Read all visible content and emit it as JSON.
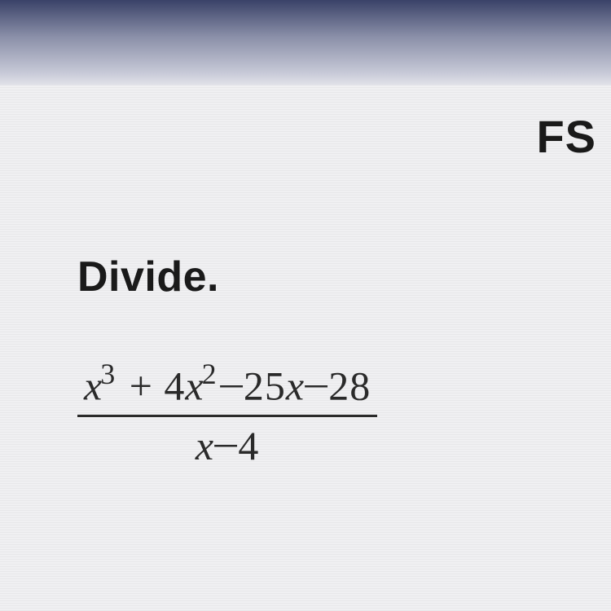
{
  "header": {
    "partial_text": "FS"
  },
  "problem": {
    "instruction": "Divide.",
    "expression": {
      "numerator": {
        "terms": [
          {
            "variable": "x",
            "exponent": 3,
            "coefficient": 1,
            "sign": ""
          },
          {
            "variable": "x",
            "exponent": 2,
            "coefficient": 4,
            "sign": "+"
          },
          {
            "variable": "x",
            "exponent": 1,
            "coefficient": 25,
            "sign": "−"
          },
          {
            "variable": null,
            "exponent": null,
            "coefficient": 28,
            "sign": "−"
          }
        ],
        "rendered": "x³ + 4x² − 25x − 28"
      },
      "denominator": {
        "terms": [
          {
            "variable": "x",
            "exponent": 1,
            "coefficient": 1,
            "sign": ""
          },
          {
            "variable": null,
            "exponent": null,
            "coefficient": 4,
            "sign": "−"
          }
        ],
        "rendered": "x − 4"
      }
    }
  },
  "styling": {
    "background_gradient_top": "#3a4268",
    "background_gradient_mid": "#8a8fa8",
    "background_content": "#f0f0f2",
    "scanline_color": "#e8e8ea",
    "text_color": "#1a1a1a",
    "math_color": "#2a2a2a",
    "instruction_fontsize": 52,
    "instruction_fontweight": "bold",
    "math_fontsize": 50,
    "math_fontfamily": "Times New Roman",
    "header_fontsize": 56,
    "fraction_bar_thickness": 3
  },
  "rendered_parts": {
    "num_t1_var": "x",
    "num_t1_exp": "3",
    "num_t2_sign": " + ",
    "num_t2_coef": "4",
    "num_t2_var": "x",
    "num_t2_exp": "2",
    "num_t3_sign": " − ",
    "num_t3_coef": "25",
    "num_t3_var": "x",
    "num_t4_sign": " − ",
    "num_t4_coef": "28",
    "den_t1_var": "x",
    "den_t2_sign": " − ",
    "den_t2_coef": "4"
  }
}
